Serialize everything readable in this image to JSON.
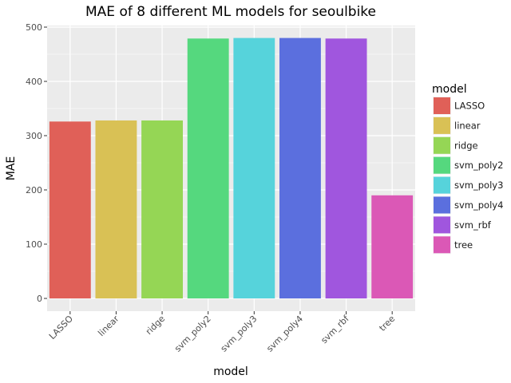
{
  "chart_data": {
    "type": "bar",
    "title": "MAE of 8 different ML models for seoulbike",
    "xlabel": "model",
    "ylabel": "MAE",
    "categories": [
      "LASSO",
      "linear",
      "ridge",
      "svm_poly2",
      "svm_poly3",
      "svm_poly4",
      "svm_rbf",
      "tree"
    ],
    "values": [
      326,
      328,
      328,
      479,
      480,
      480,
      479,
      190
    ],
    "colors": [
      "#E06058",
      "#D9C155",
      "#95D655",
      "#55D87E",
      "#56D3DB",
      "#5B6FDE",
      "#A056DE",
      "#DB58B6"
    ],
    "ylim": [
      0,
      500
    ],
    "y_ticks": [
      0,
      100,
      200,
      300,
      400,
      500
    ],
    "grid": true,
    "legend": {
      "title": "model",
      "position": "right",
      "entries": [
        "LASSO",
        "linear",
        "ridge",
        "svm_poly2",
        "svm_poly3",
        "svm_poly4",
        "svm_rbf",
        "tree"
      ]
    },
    "panel_background": "#EBEBEB",
    "grid_color": "#FFFFFF"
  }
}
